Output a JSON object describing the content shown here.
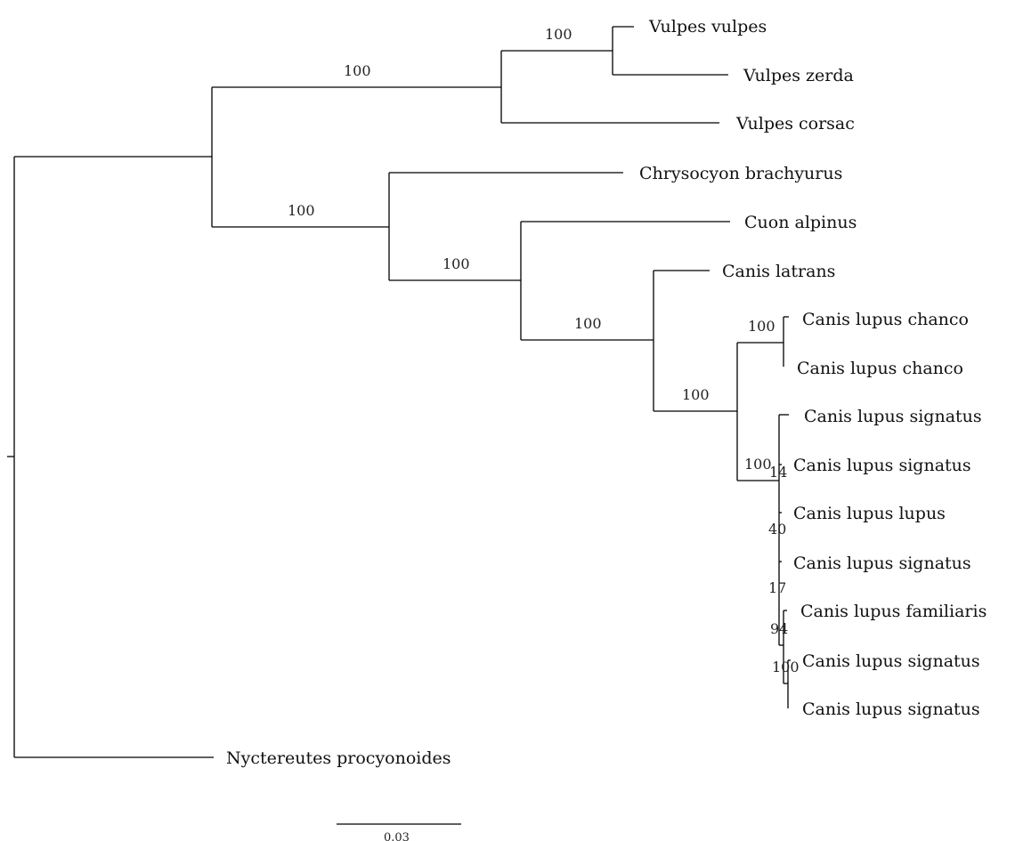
{
  "tree": {
    "taxa": [
      "Vulpes vulpes",
      "Vulpes zerda",
      "Vulpes corsac",
      "Chrysocyon brachyurus",
      "Cuon alpinus",
      "Canis latrans",
      "Canis lupus chanco",
      "Canis lupus chanco",
      "Canis lupus signatus",
      "Canis lupus signatus",
      "Canis lupus lupus",
      "Canis lupus signatus",
      "Canis lupus familiaris",
      "Canis lupus signatus",
      "Canis lupus signatus",
      "Nyctereutes procyonoides"
    ],
    "support": {
      "vulpes_vulpes_zerda": "100",
      "vulpes": "100",
      "non_vulpes": "100",
      "cuon_canis": "100",
      "canis": "100",
      "lupus": "100",
      "chanco": "100",
      "signatus_group": "100",
      "s1": "14",
      "s2": "40",
      "s3": "17",
      "s4": "94",
      "s5": "100"
    },
    "scale_bar": "0.03"
  }
}
